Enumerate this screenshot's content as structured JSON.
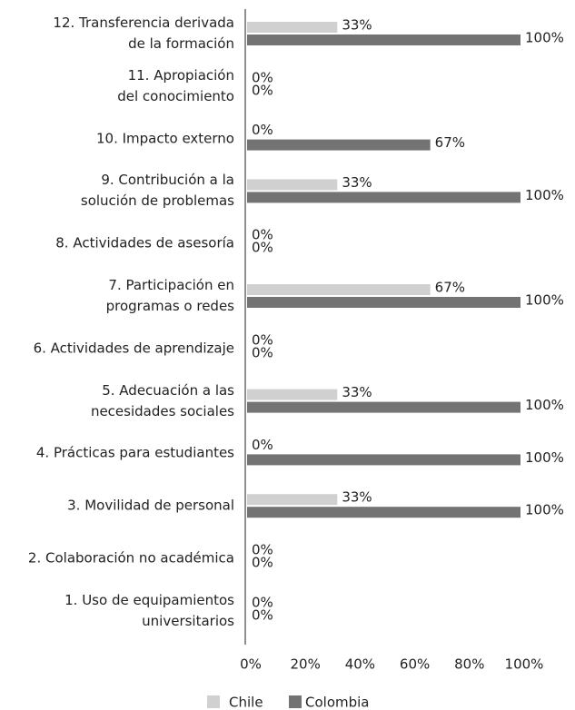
{
  "chart_data": {
    "type": "bar",
    "orientation": "horizontal",
    "categories": [
      "12. Transferencia derivada\nde la formación",
      "11. Apropiación\ndel conocimiento",
      "10. Impacto externo",
      "9. Contribución a la\nsolución de problemas",
      "8. Actividades de asesoría",
      "7. Participación en\nprogramas o redes",
      "6. Actividades de aprendizaje",
      "5. Adecuación a las\nnecesidades sociales",
      "4. Prácticas para estudiantes",
      "3. Movilidad de personal",
      "2. Colaboración no académica",
      "1. Uso de equipamientos\nuniversitarios"
    ],
    "series": [
      {
        "name": "Chile",
        "color": "#d0d0d0",
        "values": [
          33,
          0,
          0,
          33,
          0,
          67,
          0,
          33,
          0,
          33,
          0,
          0
        ],
        "value_labels": [
          "33%",
          "0%",
          "0%",
          "33%",
          "0%",
          "67%",
          "0%",
          "33%",
          "0%",
          "33%",
          "0%",
          "0%"
        ]
      },
      {
        "name": "Colombia",
        "color": "#737373",
        "values": [
          100,
          0,
          67,
          100,
          0,
          100,
          0,
          100,
          100,
          100,
          0,
          0
        ],
        "value_labels": [
          "100%",
          "0%",
          "67%",
          "100%",
          "0%",
          "100%",
          "0%",
          "100%",
          "100%",
          "100%",
          "0%",
          "0%"
        ]
      }
    ],
    "xlim": [
      0,
      100
    ],
    "xticks": [
      {
        "value": 0,
        "label": "0%"
      },
      {
        "value": 20,
        "label": "20%"
      },
      {
        "value": 40,
        "label": "40%"
      },
      {
        "value": 60,
        "label": "60%"
      },
      {
        "value": 80,
        "label": "80%"
      },
      {
        "value": 100,
        "label": "100%"
      }
    ],
    "legend": "bottom"
  }
}
